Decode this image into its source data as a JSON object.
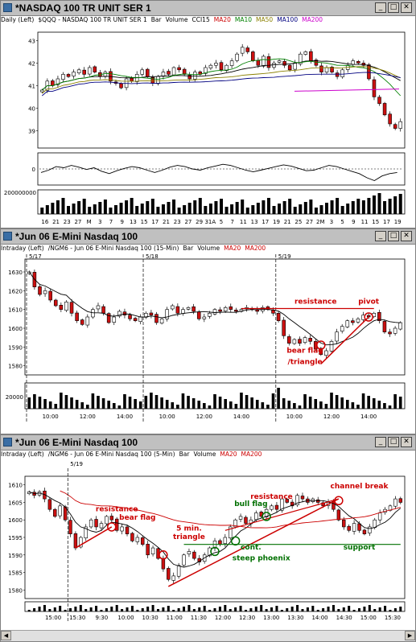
{
  "windows": [
    {
      "title": "*NASDAQ 100 TR UNIT SER 1",
      "info": [
        "Daily (Left)",
        "$QQQ - NASDAQ 100 TR UNIT SER 1",
        "Bar",
        "Volume",
        "CCI15",
        "MA20",
        "MA10",
        "MA50",
        "MA100",
        "MA200"
      ],
      "info_colors": [
        "#000000",
        "#000000",
        "#000000",
        "#000000",
        "#000000",
        "#cc0000",
        "#008000",
        "#8b8000",
        "#000080",
        "#cc00cc"
      ],
      "volume_label": "200000000",
      "cci_zero_label": "0",
      "date_ticks": [
        "16",
        "21",
        "23",
        "27",
        "M",
        "3",
        "7",
        "9",
        "13",
        "15",
        "17",
        "21",
        "23",
        "27",
        "29",
        "31A",
        "5",
        "7",
        "11",
        "13",
        "17",
        "19",
        "21",
        "25",
        "27",
        "2M",
        "3",
        "5",
        "9",
        "11",
        "15",
        "17",
        "19"
      ]
    },
    {
      "title": "*Jun 06  E-Mini Nasdaq 100",
      "info": [
        "Intraday (Left)",
        "/NGM6 - Jun 06 E-Mini Nasdaq 100 (15-Min)",
        "Bar",
        "Volume",
        "MA20",
        "MA200"
      ],
      "info_colors": [
        "#000000",
        "#000000",
        "#000000",
        "#000000",
        "#cc0000",
        "#cc0000"
      ],
      "session_labels": [
        "5/17",
        "5/18",
        "5/19"
      ],
      "volume_label": "20000",
      "time_ticks": [
        "10:00",
        "12:00",
        "14:00",
        "10:00",
        "12:00",
        "14:00",
        "10:00",
        "12:00",
        "14:00"
      ],
      "annotations": {
        "resistance": "resistance",
        "pivot": "pivot",
        "bear_flag": "bear flag",
        "triangle": "/triangle"
      }
    },
    {
      "title": "*Jun 06  E-Mini Nasdaq 100",
      "info": [
        "Intraday (Left)",
        "/NGM6 - Jun 06 E-Mini Nasdaq 100 (5-Min)",
        "Bar",
        "Volume",
        "MA20",
        "MA200"
      ],
      "info_colors": [
        "#000000",
        "#000000",
        "#000000",
        "#000000",
        "#cc0000",
        "#cc0000"
      ],
      "session_labels": [
        "5/19"
      ],
      "time_ticks": [
        "15:00",
        "15:30",
        "9:30",
        "10:00",
        "10:30",
        "11:00",
        "11:30",
        "12:00",
        "12:30",
        "13:00",
        "13:30",
        "14:00",
        "14:30",
        "15:00",
        "15:30"
      ],
      "annotations": {
        "resistance_left": "resistance",
        "bear_flag": "bear flag",
        "five_min": "5 min.",
        "triangle": "triangle",
        "bull_flag": "bull flag",
        "resistance_top": "resistance",
        "channel_break": "channel break",
        "cont": "cont.",
        "steep_phoenix": "steep phoenix",
        "support": "support"
      }
    }
  ],
  "colors": {
    "up": "#ffffff",
    "down": "#cc1010",
    "candle_outline": "#000000",
    "ma_black": "#000000",
    "ma20": "#cc0000",
    "ma10": "#008000",
    "ma50": "#8b8000",
    "ma100": "#000080",
    "ma200": "#cc00cc",
    "annot_red": "#cc0000",
    "annot_green": "#007000",
    "volume": "#000000"
  },
  "chart_data": [
    {
      "type": "candlestick",
      "title": "NASDAQ 100 TR UNIT SER 1",
      "ylim": [
        38.3,
        43.3
      ],
      "yticks": [
        39,
        40,
        41,
        42,
        43
      ],
      "closes": [
        40.8,
        41.2,
        41.0,
        41.3,
        41.5,
        41.4,
        41.6,
        41.7,
        41.5,
        41.8,
        41.6,
        41.4,
        41.6,
        41.2,
        41.1,
        40.9,
        41.3,
        41.2,
        41.5,
        41.7,
        41.4,
        41.1,
        41.4,
        41.6,
        41.5,
        41.8,
        41.7,
        41.5,
        41.3,
        41.6,
        41.5,
        41.8,
        41.9,
        42.0,
        41.7,
        41.9,
        42.1,
        42.4,
        42.7,
        42.5,
        42.1,
        41.9,
        42.3,
        41.8,
        42.0,
        42.1,
        41.9,
        41.7,
        42.0,
        42.4,
        42.5,
        42.1,
        41.9,
        41.6,
        41.8,
        41.6,
        41.4,
        41.7,
        41.9,
        42.1,
        42.0,
        41.9,
        41.3,
        40.5,
        40.2,
        39.7,
        39.3,
        39.1,
        39.4
      ],
      "cci": [
        -60,
        -20,
        40,
        20,
        60,
        30,
        -10,
        20,
        -40,
        -80,
        -30,
        10,
        40,
        20,
        -20,
        -60,
        -20,
        30,
        60,
        40,
        0,
        -20,
        20,
        50,
        80,
        60,
        20,
        -20,
        -50,
        -20,
        10,
        40,
        70,
        50,
        10,
        -30,
        -20,
        20,
        60,
        40,
        0,
        -40,
        -80,
        -150,
        -200,
        -120,
        -80,
        -60
      ]
    },
    {
      "type": "candlestick",
      "title": "Jun 06 E-Mini Nasdaq 100 (15-Min)",
      "ylim": [
        1576,
        1636
      ],
      "yticks": [
        1580,
        1590,
        1600,
        1610,
        1620,
        1630
      ],
      "closes": [
        1630,
        1622,
        1618,
        1620,
        1615,
        1612,
        1610,
        1614,
        1608,
        1604,
        1602,
        1606,
        1610,
        1612,
        1608,
        1603,
        1606,
        1609,
        1607,
        1605,
        1604,
        1606,
        1608,
        1607,
        1603,
        1605,
        1610,
        1612,
        1608,
        1610,
        1611,
        1609,
        1605,
        1606,
        1608,
        1610,
        1609,
        1611,
        1610,
        1609,
        1610,
        1611,
        1610,
        1609,
        1611,
        1610,
        1608,
        1604,
        1596,
        1592,
        1594,
        1592,
        1595,
        1593,
        1589,
        1586,
        1588,
        1593,
        1598,
        1601,
        1604,
        1603,
        1605,
        1607,
        1606,
        1608,
        1604,
        1598,
        1597,
        1600,
        1603
      ]
    },
    {
      "type": "candlestick",
      "title": "Jun 06 E-Mini Nasdaq 100 (5-Min)",
      "ylim": [
        1578,
        1612
      ],
      "yticks": [
        1580,
        1585,
        1590,
        1595,
        1600,
        1605,
        1610
      ],
      "closes": [
        1608,
        1607,
        1608,
        1606,
        1603,
        1601,
        1604,
        1600,
        1596,
        1592,
        1595,
        1598,
        1600,
        1598,
        1599,
        1601,
        1600,
        1597,
        1598,
        1596,
        1594,
        1595,
        1593,
        1590,
        1592,
        1589,
        1586,
        1583,
        1584,
        1587,
        1590,
        1591,
        1589,
        1588,
        1590,
        1592,
        1594,
        1593,
        1595,
        1598,
        1600,
        1601,
        1599,
        1600,
        1602,
        1601,
        1603,
        1604,
        1603,
        1606,
        1605,
        1604,
        1607,
        1606,
        1605,
        1606,
        1605,
        1604,
        1605,
        1603,
        1600,
        1598,
        1597,
        1599,
        1597,
        1596,
        1598,
        1600,
        1602,
        1603,
        1604,
        1606,
        1605
      ]
    }
  ]
}
